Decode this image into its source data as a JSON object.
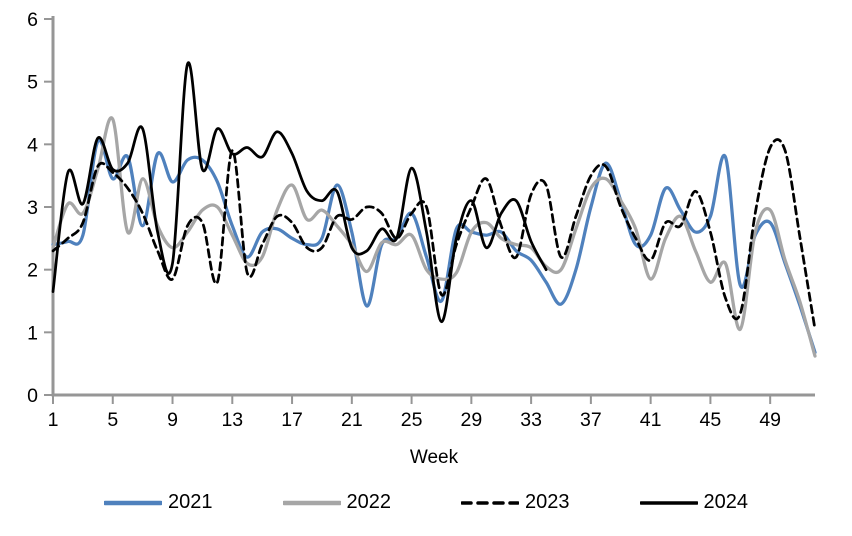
{
  "chart_data": {
    "type": "line",
    "title": "",
    "xlabel": "Week",
    "x_start_week": 1,
    "x_end_week": 52,
    "xticks": [
      "1",
      "5",
      "9",
      "13",
      "17",
      "21",
      "25",
      "29",
      "33",
      "37",
      "41",
      "45",
      "49"
    ],
    "xtick_weeks": [
      1,
      5,
      9,
      13,
      17,
      21,
      25,
      29,
      33,
      37,
      41,
      45,
      49
    ],
    "yticks": [
      "0",
      "1",
      "2",
      "3",
      "4",
      "5",
      "6"
    ],
    "ylim": [
      0,
      6
    ],
    "grid": false,
    "legend_position": "bottom",
    "axis_color": "#969696",
    "text_color": "#000000",
    "series": [
      {
        "name": "2021",
        "color": "#4F81BD",
        "style": "solid",
        "width": 3.25,
        "values": [
          2.4,
          2.45,
          2.55,
          4.05,
          3.45,
          3.8,
          2.7,
          3.85,
          3.4,
          3.75,
          3.75,
          3.4,
          2.7,
          2.2,
          2.6,
          2.65,
          2.5,
          2.4,
          2.5,
          3.35,
          2.6,
          1.42,
          2.4,
          2.5,
          2.9,
          2.2,
          1.5,
          2.65,
          2.6,
          2.55,
          2.6,
          2.3,
          2.15,
          1.8,
          1.45,
          2.0,
          3.0,
          3.7,
          3.1,
          2.4,
          2.55,
          3.3,
          2.95,
          2.6,
          2.85,
          3.8,
          1.75,
          2.55,
          2.75,
          2.1,
          1.42,
          0.68
        ]
      },
      {
        "name": "2022",
        "color": "#A6A6A6",
        "style": "solid",
        "width": 3.25,
        "values": [
          2.35,
          3.05,
          2.9,
          3.6,
          4.4,
          2.6,
          3.45,
          2.7,
          2.35,
          2.6,
          2.95,
          3.0,
          2.55,
          2.1,
          2.2,
          2.95,
          3.35,
          2.8,
          2.95,
          2.7,
          2.4,
          1.97,
          2.43,
          2.4,
          2.55,
          2.0,
          1.85,
          1.95,
          2.6,
          2.75,
          2.5,
          2.4,
          2.35,
          2.05,
          2.0,
          2.65,
          3.3,
          3.45,
          3.1,
          2.65,
          1.85,
          2.5,
          2.85,
          2.3,
          1.8,
          2.1,
          1.05,
          2.6,
          2.95,
          2.15,
          1.48,
          0.62
        ]
      },
      {
        "name": "2023",
        "color": "#000000",
        "style": "dashed",
        "width": 2.75,
        "dash": "7.5 5",
        "values": [
          2.3,
          2.5,
          2.75,
          3.65,
          3.55,
          3.3,
          2.9,
          2.3,
          1.85,
          2.7,
          2.75,
          1.8,
          3.9,
          1.95,
          2.4,
          2.85,
          2.75,
          2.35,
          2.35,
          2.85,
          2.8,
          3.0,
          2.9,
          2.5,
          2.9,
          3.0,
          1.6,
          2.4,
          3.0,
          3.45,
          2.7,
          2.2,
          3.2,
          3.35,
          2.2,
          2.85,
          3.5,
          3.65,
          3.0,
          2.5,
          2.15,
          2.75,
          2.7,
          3.25,
          2.6,
          1.55,
          1.3,
          2.9,
          3.95,
          3.9,
          2.5,
          1.05
        ]
      },
      {
        "name": "2024",
        "color": "#000000",
        "style": "solid",
        "width": 2.75,
        "values": [
          1.65,
          3.55,
          3.05,
          4.1,
          3.6,
          3.7,
          4.25,
          2.6,
          2.1,
          5.28,
          3.6,
          4.25,
          3.85,
          3.95,
          3.8,
          4.2,
          3.85,
          3.25,
          3.1,
          3.25,
          2.35,
          2.3,
          2.65,
          2.5,
          3.62,
          2.6,
          1.17,
          2.5,
          3.1,
          2.35,
          2.9,
          3.1,
          2.45,
          2.0
        ]
      }
    ]
  }
}
